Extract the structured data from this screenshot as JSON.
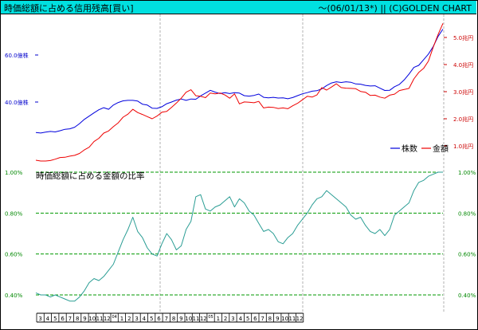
{
  "header": {
    "title": "時価総額に占める信用残高[買い]",
    "right": "〜(06/01/13*) || (C)GOLDEN CHART"
  },
  "colors": {
    "shares": "#0000dd",
    "amount": "#ee0000",
    "ratio": "#2a9d94",
    "grid": "#009900",
    "vgrid": "#b0b0b0",
    "titlebar": "#00e0e0"
  },
  "chart_data": [
    {
      "type": "line",
      "title": "",
      "legend": {
        "placement": "right",
        "entries": [
          "株数",
          "金額"
        ]
      },
      "x": {
        "labels": [
          "3",
          "4",
          "5",
          "6",
          "7",
          "8",
          "9",
          "10",
          "11",
          "12",
          "04",
          "1",
          "2",
          "3",
          "4",
          "5",
          "6",
          "7",
          "8",
          "9",
          "10",
          "11",
          "12",
          "05",
          "1",
          "2",
          "3",
          "4",
          "5",
          "6",
          "7",
          "8",
          "9",
          "10",
          "11",
          "12"
        ]
      },
      "y_left": {
        "unit": "億株",
        "ticks": [
          "40.0億株",
          "60.0億株"
        ],
        "values": [
          40,
          60
        ]
      },
      "y_right": {
        "unit": "兆円",
        "ticks": [
          "1.0兆円",
          "2.0兆円",
          "3.0兆円",
          "4.0兆円",
          "5.0兆円"
        ],
        "values": [
          1,
          2,
          3,
          4,
          5
        ]
      },
      "series": [
        {
          "name": "株数",
          "axis": "left",
          "values": [
            27.0,
            26.8,
            27.2,
            27.5,
            27.3,
            27.8,
            28.4,
            28.6,
            29.3,
            30.8,
            32.6,
            34.0,
            35.4,
            36.7,
            37.6,
            36.9,
            38.7,
            39.8,
            40.5,
            40.7,
            40.7,
            40.4,
            39.1,
            38.7,
            37.4,
            37.3,
            38.0,
            39.3,
            40.0,
            40.8,
            41.3,
            40.7,
            41.3,
            41.2,
            42.6,
            43.8,
            45.0,
            44.2,
            43.6,
            44.0,
            43.6,
            44.0,
            43.8,
            42.7,
            42.5,
            42.8,
            43.4,
            42.0,
            41.8,
            42.0,
            41.7,
            41.8,
            41.4,
            41.9,
            42.7,
            43.5,
            44.0,
            44.6,
            44.8,
            45.6,
            47.0,
            48.1,
            48.6,
            48.3,
            48.6,
            48.4,
            47.7,
            47.6,
            47.1,
            46.8,
            46.9,
            45.9,
            44.9,
            45.0,
            46.5,
            47.5,
            49.4,
            51.9,
            54.7,
            55.6,
            58.0,
            60.4,
            63.6,
            67.9,
            71.0
          ]
        },
        {
          "name": "金額",
          "axis": "right",
          "values": [
            0.47,
            0.44,
            0.44,
            0.46,
            0.51,
            0.57,
            0.58,
            0.62,
            0.65,
            0.72,
            0.85,
            0.95,
            1.16,
            1.28,
            1.47,
            1.55,
            1.71,
            1.85,
            2.06,
            2.17,
            2.35,
            2.23,
            2.16,
            2.08,
            2.0,
            2.1,
            2.24,
            2.27,
            2.42,
            2.58,
            2.76,
            2.98,
            3.07,
            2.85,
            2.83,
            2.78,
            2.95,
            2.92,
            2.95,
            2.88,
            2.76,
            2.92,
            2.55,
            2.62,
            2.61,
            2.59,
            2.64,
            2.4,
            2.43,
            2.42,
            2.38,
            2.4,
            2.37,
            2.48,
            2.57,
            2.7,
            2.83,
            2.8,
            2.88,
            3.15,
            3.06,
            3.17,
            3.29,
            3.15,
            3.13,
            3.12,
            3.11,
            3.01,
            2.98,
            2.86,
            2.87,
            2.8,
            2.76,
            2.87,
            2.91,
            3.04,
            3.08,
            3.12,
            3.47,
            3.71,
            3.86,
            4.13,
            4.64,
            5.11,
            5.52
          ]
        }
      ]
    },
    {
      "type": "line",
      "title": "時価総額に占める金額の比率",
      "y": {
        "ticks": [
          "0.40%",
          "0.60%",
          "0.80%",
          "1.00%"
        ],
        "values": [
          0.4,
          0.6,
          0.8,
          1.0
        ],
        "ylim": [
          0.35,
          1.02
        ]
      },
      "grid": true,
      "series": [
        {
          "name": "時価総額に占める金額の比率",
          "values": [
            0.41,
            0.4,
            0.4,
            0.39,
            0.4,
            0.39,
            0.38,
            0.37,
            0.37,
            0.39,
            0.42,
            0.46,
            0.48,
            0.47,
            0.49,
            0.52,
            0.55,
            0.61,
            0.67,
            0.72,
            0.78,
            0.71,
            0.68,
            0.63,
            0.6,
            0.59,
            0.65,
            0.7,
            0.67,
            0.62,
            0.64,
            0.72,
            0.76,
            0.88,
            0.89,
            0.82,
            0.81,
            0.83,
            0.84,
            0.86,
            0.88,
            0.83,
            0.87,
            0.85,
            0.81,
            0.79,
            0.75,
            0.71,
            0.72,
            0.7,
            0.66,
            0.65,
            0.68,
            0.7,
            0.74,
            0.77,
            0.8,
            0.84,
            0.87,
            0.88,
            0.91,
            0.89,
            0.87,
            0.85,
            0.83,
            0.79,
            0.77,
            0.78,
            0.74,
            0.71,
            0.7,
            0.72,
            0.69,
            0.72,
            0.79,
            0.81,
            0.83,
            0.85,
            0.91,
            0.95,
            0.96,
            0.98,
            0.99,
            1.0,
            1.0
          ]
        }
      ]
    }
  ]
}
